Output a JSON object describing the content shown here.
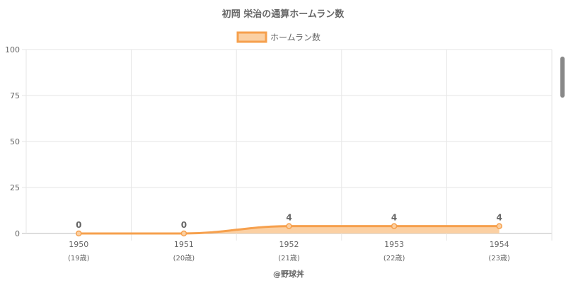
{
  "chart_data": {
    "type": "area",
    "title": "初岡 栄治の通算ホームラン数",
    "legend": {
      "label": "ホームラン数",
      "position": "top"
    },
    "categories": [
      "1950",
      "1951",
      "1952",
      "1953",
      "1954"
    ],
    "sub_labels": [
      "(19歳)",
      "(20歳)",
      "(21歳)",
      "(22歳)",
      "(23歳)"
    ],
    "series": [
      {
        "name": "ホームラン数",
        "values": [
          0,
          0,
          4,
          4,
          4
        ]
      }
    ],
    "ylim": [
      0,
      100
    ],
    "yticks": [
      0,
      25,
      50,
      75,
      100
    ],
    "grid": true,
    "colors": {
      "line": "#f6a04d",
      "fill": "#fbd0a3",
      "grid": "#e6e6e6"
    },
    "credit": "@野球丼"
  }
}
